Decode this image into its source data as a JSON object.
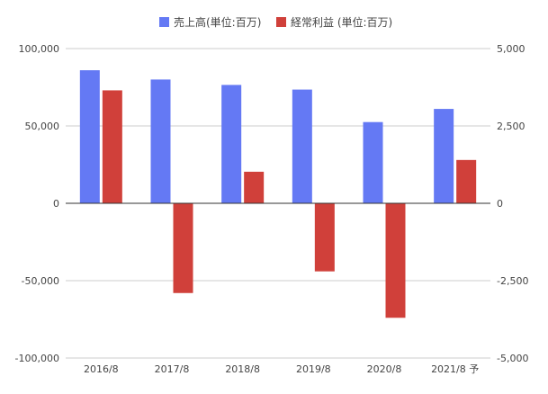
{
  "chart_data": {
    "type": "bar",
    "categories": [
      "2016/8",
      "2017/8",
      "2018/8",
      "2019/8",
      "2020/8",
      "2021/8 予"
    ],
    "series": [
      {
        "name": "売上高(単位:百万)",
        "axis": "left",
        "color": "#6479f4",
        "values": [
          86000,
          80000,
          76500,
          73500,
          52500,
          61000
        ]
      },
      {
        "name": "経常利益 (単位:百万)",
        "axis": "right",
        "color": "#d0403a",
        "values": [
          3650,
          -2900,
          1020,
          -2200,
          -3700,
          1400
        ]
      }
    ],
    "y_left": {
      "lim": [
        -100000,
        100000
      ],
      "ticks": [
        -100000,
        -50000,
        0,
        50000,
        100000
      ]
    },
    "y_right": {
      "lim": [
        -5000,
        5000
      ],
      "ticks": [
        -5000,
        -2500,
        0,
        2500,
        5000
      ]
    },
    "legend": "top-center",
    "grid": true
  }
}
